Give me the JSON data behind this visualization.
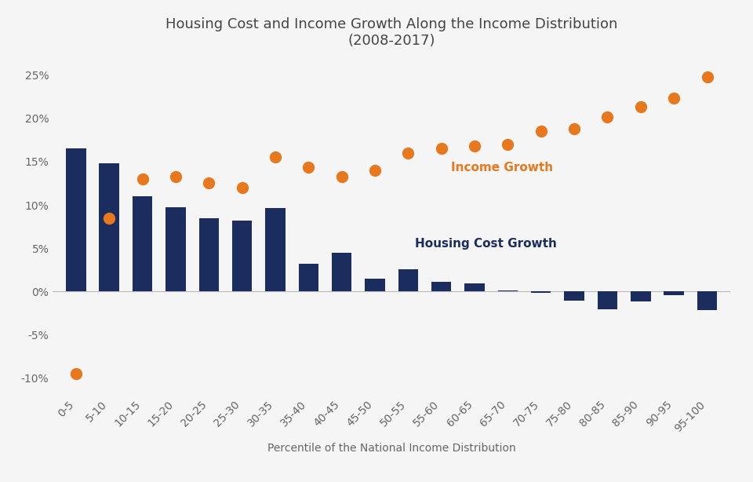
{
  "title": "Housing Cost and Income Growth Along the Income Distribution\n(2008-2017)",
  "xlabel": "Percentile of the National Income Distribution",
  "categories": [
    "0-5",
    "5-10",
    "10-15",
    "15-20",
    "20-25",
    "25-30",
    "30-35",
    "35-40",
    "40-45",
    "45-50",
    "50-55",
    "55-60",
    "60-65",
    "65-70",
    "70-75",
    "75-80",
    "80-85",
    "85-90",
    "90-95",
    "95-100"
  ],
  "housing_cost_growth": [
    16.5,
    14.8,
    11.0,
    9.7,
    8.5,
    8.2,
    9.6,
    3.2,
    4.5,
    1.5,
    2.6,
    1.1,
    0.9,
    0.15,
    -0.15,
    -1.1,
    -2.1,
    -1.2,
    -0.4,
    -2.2
  ],
  "income_growth": [
    -9.5,
    8.5,
    13.0,
    13.3,
    12.5,
    12.0,
    15.5,
    14.4,
    13.3,
    14.0,
    16.0,
    16.5,
    16.8,
    17.0,
    18.5,
    18.8,
    20.2,
    21.3,
    22.3,
    24.8
  ],
  "bar_color": "#1b2d5e",
  "dot_color": "#e8781e",
  "bg_color": "#f5f5f5",
  "income_label": "Income Growth",
  "housing_label": "Housing Cost Growth",
  "ylim": [
    -12,
    27
  ],
  "yticks": [
    -10,
    -5,
    0,
    5,
    10,
    15,
    20,
    25
  ],
  "dot_size": 100,
  "title_fontsize": 13,
  "label_fontsize": 11,
  "axis_label_fontsize": 10,
  "tick_fontsize": 10
}
